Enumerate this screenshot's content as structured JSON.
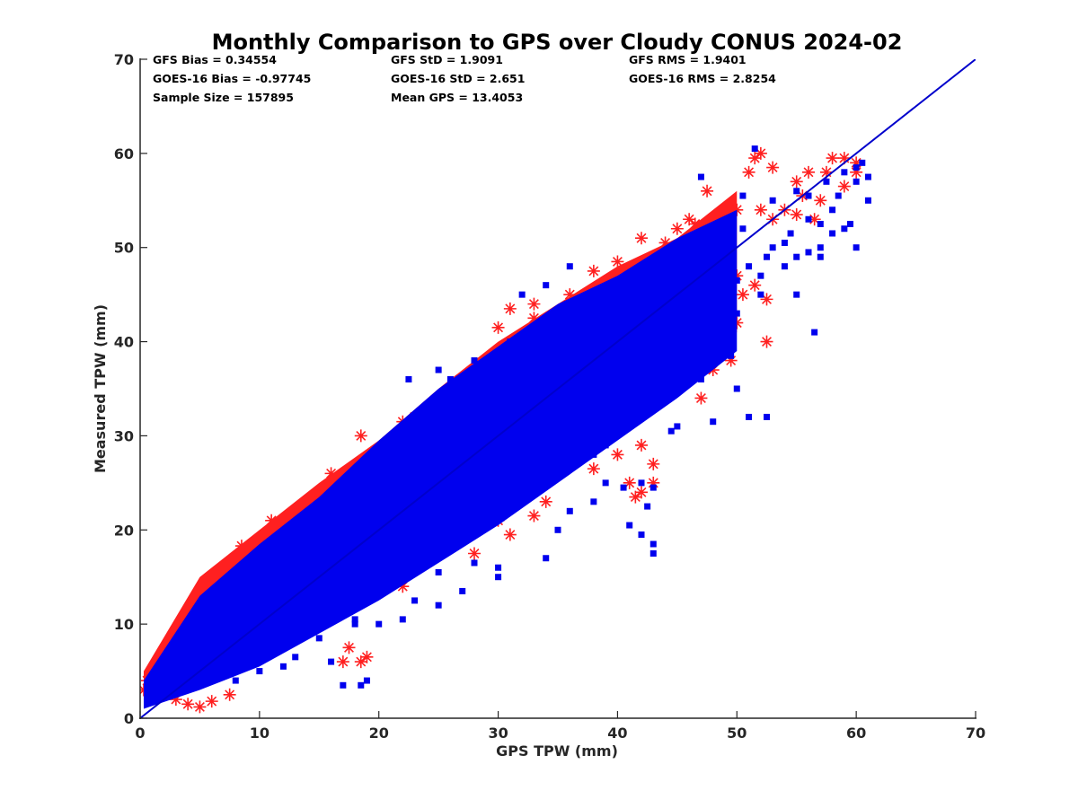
{
  "chart_data": {
    "type": "scatter",
    "title": "Monthly Comparison to GPS over Cloudy CONUS 2024-02",
    "xlabel": "GPS TPW (mm)",
    "ylabel": "Measured TPW (mm)",
    "xlim": [
      0,
      70
    ],
    "ylim": [
      0,
      70
    ],
    "xticks": [
      "0",
      "10",
      "20",
      "30",
      "40",
      "50",
      "60",
      "70"
    ],
    "yticks": [
      "0",
      "10",
      "20",
      "30",
      "40",
      "50",
      "60",
      "70"
    ],
    "grid": false,
    "stats": [
      [
        "GFS Bias = 0.34554",
        "GFS StD = 1.9091",
        "GFS RMS = 1.9401"
      ],
      [
        "GOES-16 Bias = -0.97745",
        "GOES-16 StD = 2.651",
        "GOES-16 RMS = 2.8254"
      ],
      [
        "Sample Size = 157895",
        "Mean GPS = 13.4053"
      ]
    ],
    "reference_line": {
      "x": [
        0,
        70
      ],
      "y": [
        0,
        70
      ],
      "color": "#0000cc"
    },
    "series": [
      {
        "marker": "asterisk",
        "color": "#ff2020",
        "bulk_band": [
          [
            0.3,
            1.5,
            5.0
          ],
          [
            5,
            4.0,
            15.0
          ],
          [
            10,
            7.5,
            20.0
          ],
          [
            15,
            11.0,
            25.0
          ],
          [
            20,
            14.5,
            29.5
          ],
          [
            25,
            18.0,
            35.0
          ],
          [
            30,
            23.0,
            40.0
          ],
          [
            35,
            27.0,
            44.0
          ],
          [
            40,
            31.0,
            48.0
          ],
          [
            45,
            36.0,
            51.0
          ],
          [
            50,
            41.0,
            56.0
          ]
        ],
        "outliers": [
          [
            0.3,
            3.0
          ],
          [
            1,
            5.0
          ],
          [
            2,
            6.5
          ],
          [
            3,
            2.0
          ],
          [
            4,
            1.5
          ],
          [
            5,
            1.2
          ],
          [
            6,
            1.8
          ],
          [
            7.5,
            2.5
          ],
          [
            8.5,
            18.3
          ],
          [
            11,
            21.0
          ],
          [
            13,
            22.0
          ],
          [
            14,
            22.5
          ],
          [
            18.5,
            30.0
          ],
          [
            18.5,
            6.0
          ],
          [
            19,
            6.5
          ],
          [
            17.5,
            7.5
          ],
          [
            17,
            6.0
          ],
          [
            22,
            31.5
          ],
          [
            24,
            33.0
          ],
          [
            27,
            36.0
          ],
          [
            30,
            41.5
          ],
          [
            31,
            43.5
          ],
          [
            33,
            44.0
          ],
          [
            36,
            45.0
          ],
          [
            38,
            47.5
          ],
          [
            40,
            48.5
          ],
          [
            41,
            43.0
          ],
          [
            42,
            24.0
          ],
          [
            43,
            27.0
          ],
          [
            43,
            25.0
          ],
          [
            45,
            52.0
          ],
          [
            46,
            53.0
          ],
          [
            47,
            51.0
          ],
          [
            47.5,
            56.0
          ],
          [
            48,
            48.0
          ],
          [
            50,
            54.0
          ],
          [
            50.5,
            45.0
          ],
          [
            51,
            58.0
          ],
          [
            51.5,
            59.5
          ],
          [
            52,
            60.0
          ],
          [
            53,
            58.5
          ],
          [
            54,
            54.0
          ],
          [
            52,
            54.0
          ],
          [
            55,
            57.0
          ],
          [
            56,
            58.0
          ],
          [
            57,
            55.0
          ],
          [
            58,
            59.5
          ],
          [
            59,
            59.5
          ],
          [
            60,
            58.0
          ],
          [
            44,
            37.0
          ],
          [
            45,
            35.5
          ],
          [
            44.5,
            36.0
          ],
          [
            47,
            34.0
          ],
          [
            48,
            37.0
          ],
          [
            49.5,
            38.0
          ],
          [
            50,
            42.0
          ],
          [
            52.5,
            40.0
          ],
          [
            52.5,
            44.5
          ],
          [
            51.5,
            46.0
          ],
          [
            55,
            53.5
          ],
          [
            56.5,
            53.0
          ],
          [
            59,
            56.5
          ],
          [
            60,
            59.0
          ],
          [
            48,
            50.0
          ],
          [
            49,
            50.5
          ],
          [
            42,
            51.0
          ],
          [
            43,
            48.0
          ],
          [
            35.5,
            38.5
          ],
          [
            30,
            38.0
          ],
          [
            26,
            34.0
          ],
          [
            38,
            40.0
          ],
          [
            29,
            27.0
          ],
          [
            36,
            34.0
          ],
          [
            37,
            30.0
          ],
          [
            28,
            17.5
          ],
          [
            22,
            14.0
          ],
          [
            25,
            20.0
          ],
          [
            29,
            21.5
          ],
          [
            30,
            21.0
          ],
          [
            31,
            19.5
          ],
          [
            33,
            21.5
          ],
          [
            34,
            23.0
          ],
          [
            38,
            26.5
          ],
          [
            40,
            28.0
          ],
          [
            41,
            25.0
          ],
          [
            41.5,
            23.5
          ],
          [
            42,
            29.0
          ],
          [
            39,
            30.5
          ],
          [
            20,
            28.0
          ],
          [
            16,
            26.0
          ],
          [
            9,
            16.5
          ],
          [
            1.5,
            6.0
          ],
          [
            0.6,
            4.0
          ],
          [
            3,
            8.5
          ],
          [
            5,
            9.5
          ],
          [
            7,
            13.5
          ],
          [
            12,
            19.5
          ],
          [
            15,
            24.0
          ],
          [
            19,
            27.5
          ],
          [
            23,
            32.0
          ],
          [
            27,
            35.0
          ],
          [
            32,
            38.0
          ],
          [
            33,
            42.5
          ],
          [
            36,
            42.0
          ],
          [
            39,
            46.0
          ],
          [
            41,
            47.5
          ],
          [
            44,
            50.5
          ],
          [
            46,
            48.5
          ],
          [
            47,
            45.0
          ],
          [
            53,
            53.0
          ],
          [
            55.5,
            55.5
          ],
          [
            57.5,
            58.0
          ],
          [
            46.5,
            52.5
          ],
          [
            45.5,
            48.0
          ],
          [
            44,
            42.0
          ],
          [
            46,
            42.5
          ],
          [
            47.5,
            41.0
          ],
          [
            48.5,
            44.0
          ],
          [
            50,
            47.0
          ]
        ]
      },
      {
        "marker": "square",
        "color": "#0000ee",
        "bulk_band": [
          [
            0.3,
            1.0,
            4.0
          ],
          [
            5,
            3.0,
            13.0
          ],
          [
            10,
            5.5,
            18.5
          ],
          [
            15,
            9.0,
            23.5
          ],
          [
            20,
            12.5,
            29.5
          ],
          [
            25,
            16.5,
            35.0
          ],
          [
            30,
            20.5,
            39.5
          ],
          [
            35,
            25.0,
            44.0
          ],
          [
            40,
            29.5,
            47.0
          ],
          [
            45,
            34.0,
            51.0
          ],
          [
            50,
            39.0,
            54.0
          ]
        ],
        "outliers": [
          [
            18,
            10.0
          ],
          [
            18,
            10.5
          ],
          [
            17,
            3.5
          ],
          [
            18.5,
            3.5
          ],
          [
            19,
            4.0
          ],
          [
            22.5,
            36.0
          ],
          [
            25,
            37.0
          ],
          [
            26,
            36.0
          ],
          [
            28,
            38.0
          ],
          [
            32,
            45.0
          ],
          [
            34,
            46.0
          ],
          [
            36,
            48.0
          ],
          [
            33,
            26.0
          ],
          [
            35,
            20.0
          ],
          [
            34,
            17.0
          ],
          [
            36,
            22.0
          ],
          [
            38,
            23.0
          ],
          [
            39,
            25.0
          ],
          [
            40.5,
            24.5
          ],
          [
            41,
            20.5
          ],
          [
            42,
            19.5
          ],
          [
            42.5,
            22.5
          ],
          [
            43,
            17.5
          ],
          [
            43,
            18.5
          ],
          [
            43,
            24.5
          ],
          [
            42,
            25.0
          ],
          [
            48,
            31.5
          ],
          [
            51,
            32.0
          ],
          [
            52.5,
            32.0
          ],
          [
            56.5,
            41.0
          ],
          [
            52,
            45.0
          ],
          [
            54,
            48.0
          ],
          [
            55,
            49.0
          ],
          [
            56,
            49.5
          ],
          [
            57,
            50.0
          ],
          [
            58,
            51.5
          ],
          [
            59,
            52.0
          ],
          [
            59.5,
            52.5
          ],
          [
            60,
            50.0
          ],
          [
            61,
            55.0
          ],
          [
            59,
            58.0
          ],
          [
            60,
            57.0
          ],
          [
            61,
            57.5
          ],
          [
            56,
            53.0
          ],
          [
            47,
            57.5
          ],
          [
            48,
            52.0
          ],
          [
            49,
            49.0
          ],
          [
            50.5,
            52.0
          ],
          [
            51.5,
            60.5
          ],
          [
            50.5,
            55.5
          ],
          [
            43.5,
            49.0
          ],
          [
            44,
            48.0
          ],
          [
            46,
            43.0
          ],
          [
            45,
            40.0
          ],
          [
            44.5,
            30.5
          ],
          [
            45,
            31.0
          ],
          [
            36,
            27.0
          ],
          [
            30,
            16.0
          ],
          [
            30,
            15.0
          ],
          [
            27,
            13.5
          ],
          [
            28,
            16.5
          ],
          [
            25,
            15.5
          ],
          [
            20,
            10.0
          ],
          [
            22,
            10.5
          ],
          [
            23,
            12.5
          ],
          [
            25,
            12.0
          ],
          [
            15,
            8.5
          ],
          [
            13,
            6.5
          ],
          [
            8,
            4.0
          ],
          [
            10,
            5.0
          ],
          [
            12,
            5.5
          ],
          [
            16,
            6.0
          ],
          [
            22,
            28.0
          ],
          [
            20,
            26.0
          ],
          [
            14,
            21.0
          ],
          [
            10,
            17.0
          ],
          [
            26,
            34.5
          ],
          [
            29,
            37.5
          ],
          [
            31,
            40.0
          ],
          [
            33,
            40.5
          ],
          [
            37.5,
            44.0
          ],
          [
            40,
            46.0
          ],
          [
            42,
            47.0
          ],
          [
            41,
            33.0
          ],
          [
            40,
            31.0
          ],
          [
            38,
            28.0
          ],
          [
            46,
            37.5
          ],
          [
            47,
            36.0
          ],
          [
            49,
            41.0
          ],
          [
            50,
            43.0
          ],
          [
            52,
            47.0
          ],
          [
            53,
            50.0
          ],
          [
            54.5,
            51.5
          ],
          [
            57,
            52.5
          ],
          [
            58,
            54.0
          ],
          [
            55,
            45.0
          ],
          [
            57,
            49.0
          ],
          [
            48.5,
            46.0
          ],
          [
            47,
            43.5
          ],
          [
            49.5,
            38.5
          ],
          [
            50,
            35.0
          ],
          [
            53,
            55.0
          ],
          [
            55,
            56.0
          ],
          [
            56,
            55.5
          ],
          [
            57.5,
            57.0
          ],
          [
            58.5,
            55.5
          ],
          [
            60,
            58.5
          ],
          [
            60.5,
            59.0
          ],
          [
            50,
            46.5
          ],
          [
            51,
            48.0
          ],
          [
            52.5,
            49.0
          ],
          [
            54,
            50.5
          ],
          [
            45,
            45.5
          ],
          [
            44,
            40.0
          ],
          [
            43,
            36.0
          ],
          [
            42,
            34.5
          ],
          [
            39,
            29.0
          ]
        ]
      }
    ]
  }
}
